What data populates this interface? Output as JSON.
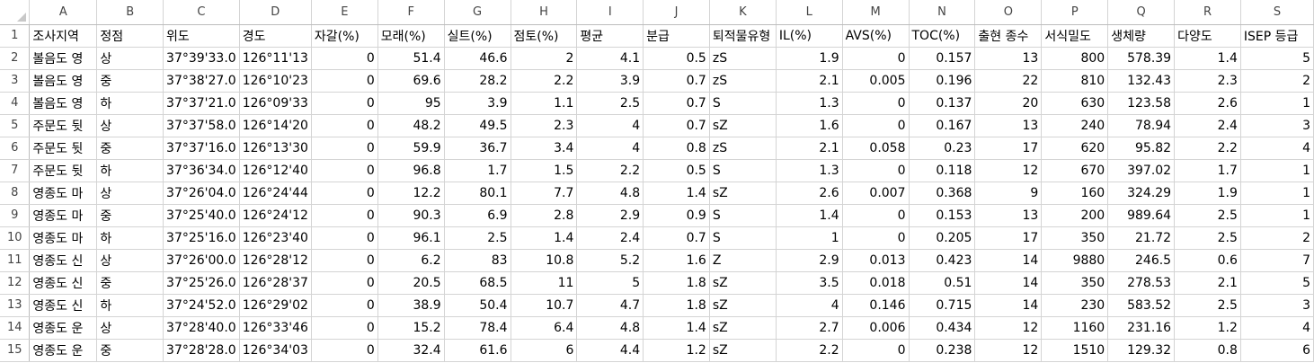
{
  "columns": [
    "A",
    "B",
    "C",
    "D",
    "E",
    "F",
    "G",
    "H",
    "I",
    "J",
    "K",
    "L",
    "M",
    "N",
    "O",
    "P",
    "Q",
    "R",
    "S"
  ],
  "header_row": {
    "row_number": "1",
    "cells": [
      "조사지역",
      "정점",
      "위도",
      "경도",
      "자갈(%)",
      "모래(%)",
      "실트(%)",
      "점토(%)",
      "평균",
      "분급",
      "퇴적물유형",
      "IL(%)",
      "AVS(%)",
      "TOC(%)",
      "출현 종수",
      "서식밀도",
      "생체량",
      "다양도",
      "ISEP 등급"
    ]
  },
  "rows": [
    {
      "row_number": "2",
      "cells": [
        "볼음도 영",
        "상",
        "37°39'33.0",
        "126°11'13",
        "0",
        "51.4",
        "46.6",
        "2",
        "4.1",
        "0.5",
        "zS",
        "1.9",
        "0",
        "0.157",
        "13",
        "800",
        "578.39",
        "1.4",
        "5"
      ]
    },
    {
      "row_number": "3",
      "cells": [
        "볼음도 영",
        "중",
        "37°38'27.0",
        "126°10'23",
        "0",
        "69.6",
        "28.2",
        "2.2",
        "3.9",
        "0.7",
        "zS",
        "2.1",
        "0.005",
        "0.196",
        "22",
        "810",
        "132.43",
        "2.3",
        "2"
      ]
    },
    {
      "row_number": "4",
      "cells": [
        "볼음도 영",
        "하",
        "37°37'21.0",
        "126°09'33",
        "0",
        "95",
        "3.9",
        "1.1",
        "2.5",
        "0.7",
        "S",
        "1.3",
        "0",
        "0.137",
        "20",
        "630",
        "123.58",
        "2.6",
        "1"
      ]
    },
    {
      "row_number": "5",
      "cells": [
        "주문도 뒷",
        "상",
        "37°37'58.0",
        "126°14'20",
        "0",
        "48.2",
        "49.5",
        "2.3",
        "4",
        "0.7",
        "sZ",
        "1.6",
        "0",
        "0.167",
        "13",
        "240",
        "78.94",
        "2.4",
        "3"
      ]
    },
    {
      "row_number": "6",
      "cells": [
        "주문도 뒷",
        "중",
        "37°37'16.0",
        "126°13'30",
        "0",
        "59.9",
        "36.7",
        "3.4",
        "4",
        "0.8",
        "zS",
        "2.1",
        "0.058",
        "0.23",
        "17",
        "620",
        "95.82",
        "2.2",
        "4"
      ]
    },
    {
      "row_number": "7",
      "cells": [
        "주문도 뒷",
        "하",
        "37°36'34.0",
        "126°12'40",
        "0",
        "96.8",
        "1.7",
        "1.5",
        "2.2",
        "0.5",
        "S",
        "1.3",
        "0",
        "0.118",
        "12",
        "670",
        "397.02",
        "1.7",
        "1"
      ]
    },
    {
      "row_number": "8",
      "cells": [
        "영종도 마",
        "상",
        "37°26'04.0",
        "126°24'44",
        "0",
        "12.2",
        "80.1",
        "7.7",
        "4.8",
        "1.4",
        "sZ",
        "2.6",
        "0.007",
        "0.368",
        "9",
        "160",
        "324.29",
        "1.9",
        "1"
      ]
    },
    {
      "row_number": "9",
      "cells": [
        "영종도 마",
        "중",
        "37°25'40.0",
        "126°24'12",
        "0",
        "90.3",
        "6.9",
        "2.8",
        "2.9",
        "0.9",
        "S",
        "1.4",
        "0",
        "0.153",
        "13",
        "200",
        "989.64",
        "2.5",
        "1"
      ]
    },
    {
      "row_number": "10",
      "cells": [
        "영종도 마",
        "하",
        "37°25'16.0",
        "126°23'40",
        "0",
        "96.1",
        "2.5",
        "1.4",
        "2.4",
        "0.7",
        "S",
        "1",
        "0",
        "0.205",
        "17",
        "350",
        "21.72",
        "2.5",
        "2"
      ]
    },
    {
      "row_number": "11",
      "cells": [
        "영종도 신",
        "상",
        "37°26'00.0",
        "126°28'12",
        "0",
        "6.2",
        "83",
        "10.8",
        "5.2",
        "1.6",
        "Z",
        "2.9",
        "0.013",
        "0.423",
        "14",
        "9880",
        "246.5",
        "0.6",
        "7"
      ]
    },
    {
      "row_number": "12",
      "cells": [
        "영종도 신",
        "중",
        "37°25'26.0",
        "126°28'37",
        "0",
        "20.5",
        "68.5",
        "11",
        "5",
        "1.8",
        "sZ",
        "3.5",
        "0.018",
        "0.51",
        "14",
        "350",
        "278.53",
        "2.1",
        "5"
      ]
    },
    {
      "row_number": "13",
      "cells": [
        "영종도 신",
        "하",
        "37°24'52.0",
        "126°29'02",
        "0",
        "38.9",
        "50.4",
        "10.7",
        "4.7",
        "1.8",
        "sZ",
        "4",
        "0.146",
        "0.715",
        "14",
        "230",
        "583.52",
        "2.5",
        "3"
      ]
    },
    {
      "row_number": "14",
      "cells": [
        "영종도 운",
        "상",
        "37°28'40.0",
        "126°33'46",
        "0",
        "15.2",
        "78.4",
        "6.4",
        "4.8",
        "1.4",
        "sZ",
        "2.7",
        "0.006",
        "0.434",
        "12",
        "1160",
        "231.16",
        "1.2",
        "4"
      ]
    },
    {
      "row_number": "15",
      "cells": [
        "영종도 운",
        "중",
        "37°28'28.0",
        "126°34'03",
        "0",
        "32.4",
        "61.6",
        "6",
        "4.4",
        "1.2",
        "sZ",
        "2.2",
        "0",
        "0.238",
        "12",
        "1510",
        "129.32",
        "0.8",
        "6"
      ]
    }
  ],
  "colors": {
    "grid_line": "#d4d4d4",
    "header_text": "#444444",
    "cell_text": "#000000"
  }
}
